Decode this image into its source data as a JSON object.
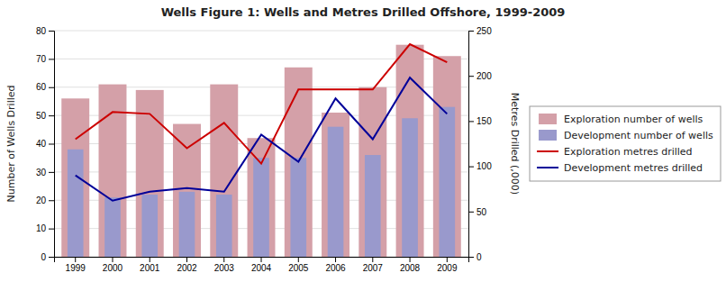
{
  "chart_data": {
    "type": "bar",
    "title": "Wells Figure 1: Wells and Metres Drilled Offshore, 1999-2009",
    "categories": [
      "1999",
      "2000",
      "2001",
      "2002",
      "2003",
      "2004",
      "2005",
      "2006",
      "2007",
      "2008",
      "2009"
    ],
    "series": [
      {
        "name": "Exploration number of wells",
        "type": "bar",
        "color": "#d4a0a8",
        "values": [
          56,
          61,
          59,
          47,
          61,
          42,
          67,
          51,
          60,
          75,
          71
        ]
      },
      {
        "name": "Development number of wells",
        "type": "bar",
        "color": "#9999cc",
        "values": [
          38,
          21,
          22,
          23,
          22,
          35,
          35,
          46,
          36,
          49,
          53
        ]
      },
      {
        "name": "Exploration metres drilled",
        "type": "line",
        "color": "#cc0000",
        "axis": "y2",
        "values": [
          130,
          160,
          158,
          120,
          148,
          103,
          185,
          185,
          185,
          235,
          215
        ]
      },
      {
        "name": "Development metres drilled",
        "type": "line",
        "color": "#000099",
        "axis": "y2",
        "values": [
          90,
          62,
          72,
          76,
          72,
          135,
          105,
          175,
          130,
          198,
          158
        ]
      }
    ],
    "ylabel": "Number of Wells Drilled",
    "y2label": "Metres Drilled (,000)",
    "ylim": [
      0,
      80
    ],
    "yticks": [
      0,
      10,
      20,
      30,
      40,
      50,
      60,
      70,
      80
    ],
    "y2lim": [
      0,
      250
    ],
    "y2ticks": [
      0,
      50,
      100,
      150,
      200,
      250
    ],
    "grid": true,
    "legend": "right"
  }
}
